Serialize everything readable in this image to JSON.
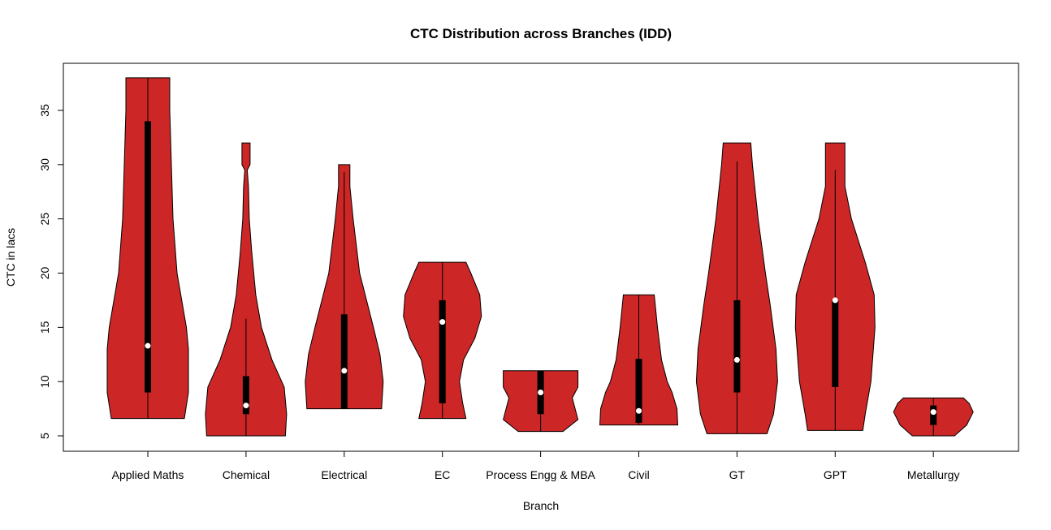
{
  "chart_data": {
    "type": "violin",
    "title": "CTC Distribution across Branches (IDD)",
    "xlabel": "Branch",
    "ylabel": "CTC in lacs",
    "ylim": [
      3.6,
      39.4
    ],
    "yticks": [
      5,
      10,
      15,
      20,
      25,
      30,
      35
    ],
    "grid": false,
    "fill_color": "#CD2626",
    "categories": [
      "Applied Maths",
      "Chemical",
      "Electrical",
      "EC",
      "Process Engg & MBA",
      "Civil",
      "GT",
      "GPT",
      "Metallurgy"
    ],
    "series": [
      {
        "min": 6.6,
        "max": 38,
        "q1": 9,
        "median": 13.3,
        "q3": 34,
        "whisker_high": 38,
        "density": [
          [
            6.6,
            0.9
          ],
          [
            9,
            1
          ],
          [
            13,
            1
          ],
          [
            15,
            0.95
          ],
          [
            20,
            0.72
          ],
          [
            25,
            0.62
          ],
          [
            30,
            0.58
          ],
          [
            35,
            0.54
          ],
          [
            38,
            0.54
          ]
        ]
      },
      {
        "min": 5,
        "max": 32,
        "q1": 7,
        "median": 7.8,
        "q3": 10.5,
        "whisker_high": 15.8,
        "density": [
          [
            5,
            0.97
          ],
          [
            7,
            1
          ],
          [
            9.5,
            0.94
          ],
          [
            12,
            0.64
          ],
          [
            15,
            0.38
          ],
          [
            18,
            0.24
          ],
          [
            22,
            0.14
          ],
          [
            25,
            0.08
          ],
          [
            28,
            0.06
          ],
          [
            29.5,
            0.03
          ],
          [
            30,
            0.1
          ],
          [
            32,
            0.1
          ]
        ]
      },
      {
        "min": 7.5,
        "max": 30,
        "q1": 7.5,
        "median": 11,
        "q3": 16.2,
        "whisker_high": 29.3,
        "density": [
          [
            7.5,
            0.92
          ],
          [
            10,
            0.96
          ],
          [
            12.5,
            0.88
          ],
          [
            15,
            0.72
          ],
          [
            20,
            0.38
          ],
          [
            25,
            0.22
          ],
          [
            28,
            0.14
          ],
          [
            30,
            0.14
          ]
        ]
      },
      {
        "min": 6.6,
        "max": 21,
        "q1": 8,
        "median": 15.5,
        "q3": 17.5,
        "whisker_high": 21,
        "density": [
          [
            6.6,
            0.58
          ],
          [
            8,
            0.5
          ],
          [
            10,
            0.42
          ],
          [
            12,
            0.52
          ],
          [
            14,
            0.8
          ],
          [
            16,
            0.96
          ],
          [
            18,
            0.92
          ],
          [
            20,
            0.7
          ],
          [
            21,
            0.58
          ]
        ]
      },
      {
        "min": 5.4,
        "max": 11,
        "q1": 7,
        "median": 9,
        "q3": 11,
        "whisker_high": 11,
        "density": [
          [
            5.4,
            0.55
          ],
          [
            6.5,
            0.92
          ],
          [
            8.5,
            0.78
          ],
          [
            9.5,
            0.92
          ],
          [
            11,
            0.92
          ]
        ]
      },
      {
        "min": 6,
        "max": 18,
        "q1": 6.2,
        "median": 7.3,
        "q3": 12.1,
        "whisker_high": 18,
        "density": [
          [
            6,
            0.96
          ],
          [
            7.5,
            0.94
          ],
          [
            9,
            0.82
          ],
          [
            10,
            0.7
          ],
          [
            12,
            0.56
          ],
          [
            15,
            0.46
          ],
          [
            18,
            0.38
          ]
        ]
      },
      {
        "min": 5.2,
        "max": 32,
        "q1": 9,
        "median": 12,
        "q3": 17.5,
        "whisker_high": 30.3,
        "density": [
          [
            5.2,
            0.74
          ],
          [
            7,
            0.9
          ],
          [
            10,
            1
          ],
          [
            13,
            0.96
          ],
          [
            17,
            0.82
          ],
          [
            20,
            0.7
          ],
          [
            25,
            0.52
          ],
          [
            30,
            0.38
          ],
          [
            32,
            0.34
          ]
        ]
      },
      {
        "min": 5.5,
        "max": 32,
        "q1": 9.5,
        "median": 17.5,
        "q3": 17.5,
        "whisker_high": 29.5,
        "density": [
          [
            5.5,
            0.68
          ],
          [
            7,
            0.74
          ],
          [
            10,
            0.88
          ],
          [
            15,
            0.98
          ],
          [
            18,
            0.96
          ],
          [
            21,
            0.74
          ],
          [
            25,
            0.4
          ],
          [
            28,
            0.24
          ],
          [
            30,
            0.24
          ],
          [
            32,
            0.24
          ]
        ]
      },
      {
        "min": 5,
        "max": 8.5,
        "q1": 6,
        "median": 7.2,
        "q3": 7.8,
        "whisker_high": 8.5,
        "density": [
          [
            5,
            0.52
          ],
          [
            6,
            0.82
          ],
          [
            7.2,
            0.98
          ],
          [
            8,
            0.88
          ],
          [
            8.5,
            0.74
          ]
        ]
      }
    ]
  }
}
